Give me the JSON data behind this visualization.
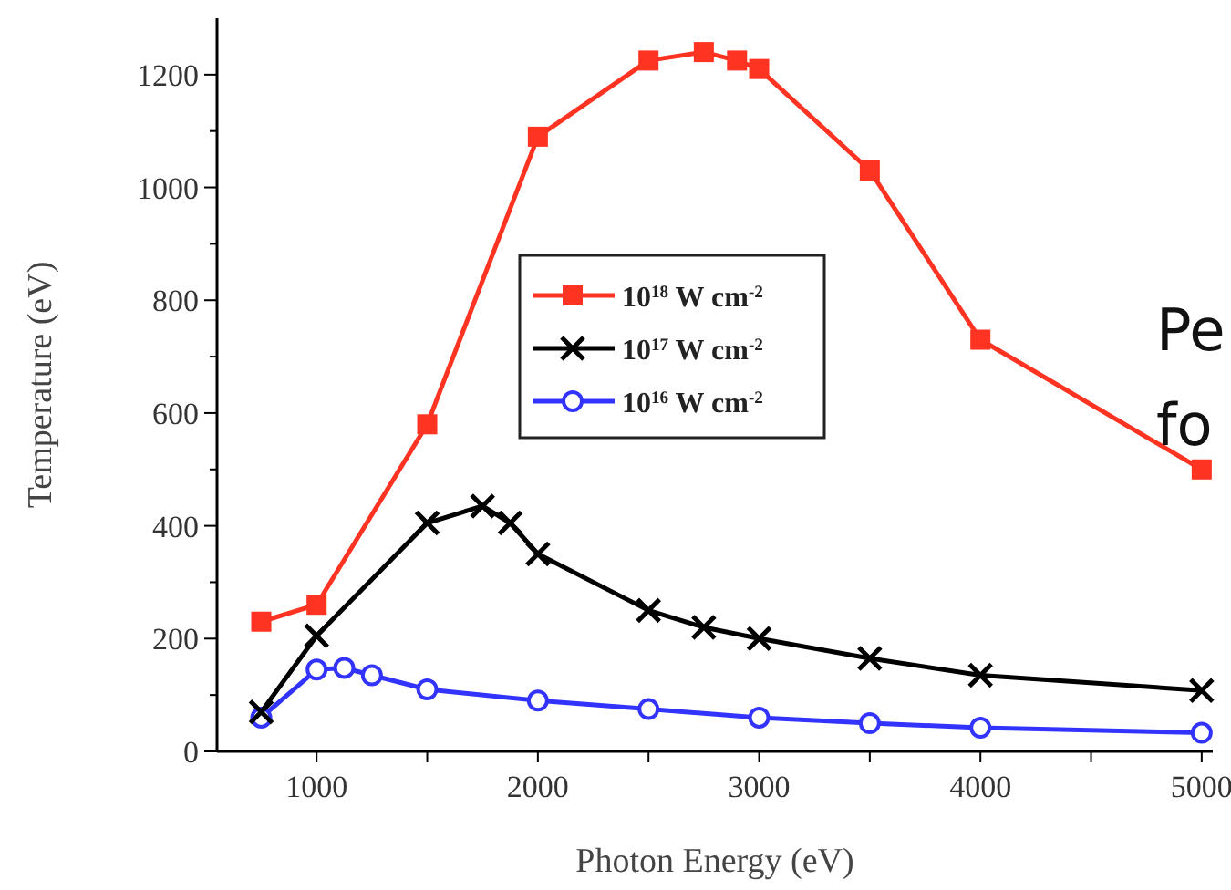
{
  "chart_data": {
    "type": "line",
    "xlabel": "Photon Energy (eV)",
    "ylabel": "Temperature (eV)",
    "xlim": [
      550,
      5050
    ],
    "ylim": [
      0,
      1300
    ],
    "xticks": [
      1000,
      {
        "value": 1500,
        "label": null
      },
      2000,
      {
        "value": 2500,
        "label": null
      },
      3000,
      {
        "value": 3500,
        "label": null
      },
      4000,
      {
        "value": 4500,
        "label": null
      },
      5000
    ],
    "yticks": [
      0,
      {
        "value": 100,
        "label": null
      },
      200,
      {
        "value": 300,
        "label": null
      },
      400,
      {
        "value": 500,
        "label": null
      },
      600,
      {
        "value": 700,
        "label": null
      },
      800,
      {
        "value": 900,
        "label": null
      },
      1000,
      {
        "value": 1100,
        "label": null
      },
      1200
    ],
    "grid": false,
    "legend": "center",
    "line_style": "solid",
    "annotations": [
      "Pe",
      "fo"
    ],
    "series": [
      {
        "name": "10$^{18}$ W cm$^{-2}$",
        "color": "#ff3322",
        "marker": "square",
        "x": [
          750,
          1000,
          1500,
          2000,
          2500,
          2750,
          2900,
          3000,
          3500,
          4000,
          5000
        ],
        "values": [
          230,
          260,
          580,
          1090,
          1225,
          1240,
          1225,
          1210,
          1030,
          730,
          500
        ]
      },
      {
        "name": "10$^{17}$ W cm$^{-2}$",
        "color": "#000000",
        "marker": "cross",
        "x": [
          750,
          1000,
          1500,
          1750,
          1875,
          2000,
          2500,
          2750,
          3000,
          3500,
          4000,
          5000
        ],
        "values": [
          70,
          205,
          405,
          435,
          405,
          350,
          250,
          220,
          200,
          165,
          135,
          108
        ]
      },
      {
        "name": "10$^{16}$ W cm$^{-2}$",
        "color": "#3333ff",
        "marker": "circle",
        "x": [
          750,
          1000,
          1125,
          1250,
          1500,
          2000,
          2500,
          3000,
          3500,
          4000,
          5000
        ],
        "values": [
          60,
          145,
          148,
          135,
          110,
          90,
          75,
          60,
          50,
          42,
          33
        ]
      }
    ]
  }
}
